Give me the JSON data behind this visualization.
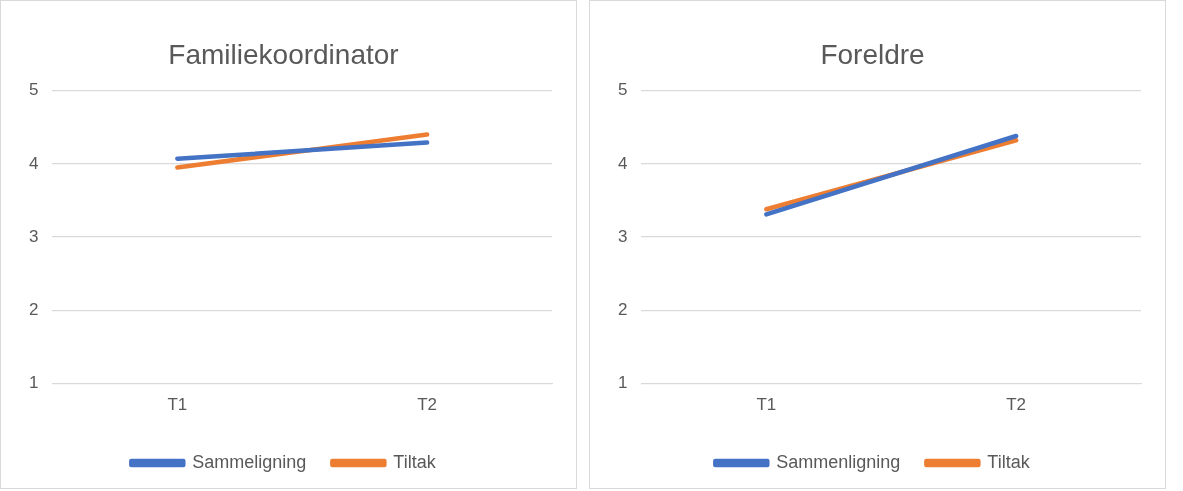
{
  "chart_data": [
    {
      "type": "line",
      "title": "Familiekoordinator",
      "categories": [
        "T1",
        "T2"
      ],
      "series": [
        {
          "name": "Sammeligning",
          "color": "#4472c4",
          "values": [
            4.07,
            4.29
          ]
        },
        {
          "name": "Tiltak",
          "color": "#ed7d31",
          "values": [
            3.95,
            4.4
          ]
        }
      ],
      "ylim": [
        1,
        5
      ],
      "yticks": [
        1,
        2,
        3,
        4,
        5
      ],
      "grid": "y",
      "legend": "bottom",
      "marker": "none",
      "line_style": "solid"
    },
    {
      "type": "line",
      "title": "Foreldre",
      "categories": [
        "T1",
        "T2"
      ],
      "series": [
        {
          "name": "Sammenligning",
          "color": "#4472c4",
          "values": [
            3.31,
            4.38
          ]
        },
        {
          "name": "Tiltak",
          "color": "#ed7d31",
          "values": [
            3.38,
            4.32
          ]
        }
      ],
      "ylim": [
        1,
        5
      ],
      "yticks": [
        1,
        2,
        3,
        4,
        5
      ],
      "grid": "y",
      "legend": "bottom",
      "marker": "none",
      "line_style": "solid"
    }
  ]
}
